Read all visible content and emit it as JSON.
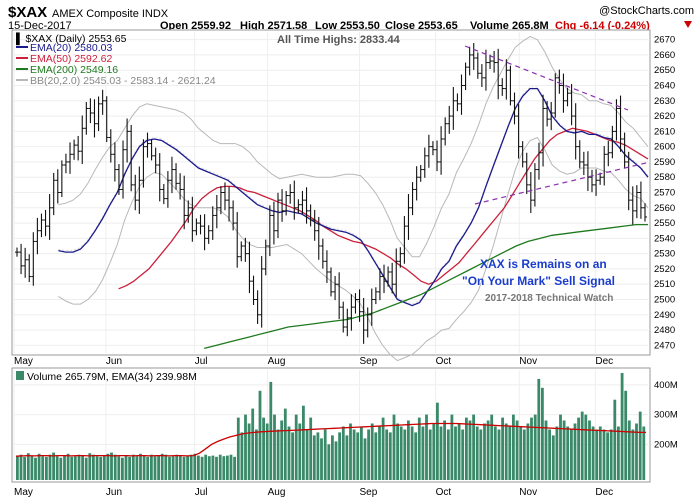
{
  "header": {
    "symbol": "$XAX",
    "name": "AMEX Composite INDX",
    "date": "15-Dec-2017",
    "open": "Open 2559.92",
    "high": "High 2571.58",
    "low": "Low 2553.50",
    "close": "Close 2553.65",
    "volume": "Volume 265.8M",
    "change": "Chg -6.14 (-0.24%)",
    "brand": "@StockCharts.com"
  },
  "legend": {
    "price": "$XAX (Daily) 2553.65",
    "ema20": "EMA(20) 2580.03",
    "ema50": "EMA(50) 2592.62",
    "ema200": "EMA(200) 2549.16",
    "bb": "BB(20,2.0) 2545.03 - 2583.14 - 2621.24"
  },
  "annotations": {
    "ath": "All Time Highs: 2833.44",
    "line1": "XAX is Remains on an",
    "line2": "\"On Your Mark\" Sell Signal",
    "line3": "2017-2018 Technical Watch"
  },
  "volume_legend": "Volume 265.79M, EMA(34) 239.98M",
  "colors": {
    "ema20": "#1a1a8c",
    "ema50": "#cc1f3a",
    "ema200": "#1f7a1f",
    "bb": "#b8b8b8",
    "volume_bar": "#3a8a6a",
    "volume_ema": "#cc0000",
    "trendline": "#8a2fae"
  },
  "chart_data": [
    {
      "type": "line",
      "title": "$XAX AMEX Composite INDX",
      "x_labels": [
        "May",
        "Jun",
        "Jul",
        "Aug",
        "Sep",
        "Oct",
        "Nov",
        "Dec"
      ],
      "y_ticks": [
        2470,
        2480,
        2490,
        2500,
        2510,
        2520,
        2530,
        2540,
        2550,
        2560,
        2570,
        2580,
        2590,
        2600,
        2610,
        2620,
        2630,
        2640,
        2650,
        2660,
        2670
      ],
      "ylim": [
        2465,
        2675
      ],
      "series": [
        {
          "name": "$XAX (Daily)",
          "values": [
            2531,
            2522,
            2526,
            2515,
            2538,
            2545,
            2552,
            2548,
            2560,
            2578,
            2570,
            2588,
            2590,
            2595,
            2601,
            2597,
            2612,
            2625,
            2622,
            2615,
            2628,
            2630,
            2606,
            2595,
            2585,
            2572,
            2598,
            2610,
            2575,
            2565,
            2578,
            2600,
            2602,
            2594,
            2588,
            2572,
            2566,
            2578,
            2585,
            2576,
            2572,
            2555,
            2560,
            2545,
            2550,
            2548,
            2540,
            2545,
            2555,
            2560,
            2570,
            2565,
            2560,
            2550,
            2528,
            2535,
            2530,
            2512,
            2500,
            2490,
            2520,
            2535,
            2555,
            2545,
            2565,
            2558,
            2568,
            2570,
            2560,
            2562,
            2565,
            2558,
            2552,
            2545,
            2535,
            2525,
            2518,
            2505,
            2510,
            2495,
            2482,
            2488,
            2495,
            2500,
            2492,
            2480,
            2490,
            2500,
            2505,
            2515,
            2512,
            2518,
            2510,
            2525,
            2530,
            2548,
            2560,
            2572,
            2580,
            2585,
            2594,
            2600,
            2598,
            2590,
            2605,
            2615,
            2620,
            2630,
            2628,
            2640,
            2652,
            2660,
            2658,
            2648,
            2645,
            2655,
            2656,
            2655,
            2640,
            2638,
            2650,
            2630,
            2620,
            2600,
            2590,
            2575,
            2565,
            2585,
            2596,
            2625,
            2618,
            2622,
            2645,
            2640,
            2630,
            2635,
            2620,
            2600,
            2590,
            2588,
            2580,
            2575,
            2578,
            2580,
            2595,
            2596,
            2610,
            2625,
            2605,
            2590,
            2565,
            2558,
            2570,
            2560,
            2554
          ]
        },
        {
          "name": "EMA(20)",
          "values": [
            2532,
            2531,
            2531,
            2533,
            2538,
            2545,
            2553,
            2562,
            2570,
            2582,
            2592,
            2600,
            2604,
            2605,
            2604,
            2601,
            2598,
            2594,
            2590,
            2586,
            2584,
            2582,
            2580,
            2578,
            2574,
            2570,
            2566,
            2562,
            2560,
            2558,
            2557,
            2558,
            2557,
            2556,
            2553,
            2550,
            2548,
            2546,
            2545,
            2544,
            2542,
            2539,
            2532,
            2524,
            2516,
            2508,
            2500,
            2498,
            2496,
            2498,
            2505,
            2512,
            2520,
            2525,
            2535,
            2542,
            2550,
            2560,
            2574,
            2587,
            2600,
            2613,
            2625,
            2633,
            2638,
            2638,
            2630,
            2620,
            2614,
            2610,
            2609,
            2610,
            2608,
            2608,
            2606,
            2605,
            2600,
            2594,
            2590,
            2586,
            2580
          ]
        },
        {
          "name": "EMA(50)",
          "values": [
            2507,
            2509,
            2512,
            2516,
            2520,
            2526,
            2532,
            2538,
            2545,
            2552,
            2560,
            2566,
            2570,
            2573,
            2574,
            2574,
            2573,
            2571,
            2570,
            2568,
            2566,
            2564,
            2562,
            2560,
            2558,
            2555,
            2552,
            2548,
            2545,
            2542,
            2540,
            2538,
            2537,
            2535,
            2533,
            2530,
            2527,
            2523,
            2520,
            2516,
            2512,
            2510,
            2512,
            2516,
            2520,
            2524,
            2530,
            2536,
            2542,
            2548,
            2554,
            2560,
            2568,
            2576,
            2584,
            2592,
            2598,
            2604,
            2608,
            2610,
            2612,
            2611,
            2610,
            2608,
            2606,
            2604,
            2603,
            2601,
            2598,
            2595,
            2592
          ]
        },
        {
          "name": "EMA(200)",
          "values": [
            2468,
            2470,
            2472,
            2474,
            2476,
            2478,
            2480,
            2482,
            2483,
            2484,
            2485,
            2486,
            2487,
            2489,
            2491,
            2494,
            2497,
            2500,
            2503,
            2507,
            2511,
            2515,
            2519,
            2523,
            2527,
            2531,
            2535,
            2538,
            2540,
            2542,
            2543,
            2544,
            2545,
            2546,
            2547,
            2548,
            2549,
            2549
          ]
        }
      ]
    },
    {
      "type": "bar",
      "title": "Volume 265.79M, EMA(34) 239.98M",
      "x_labels": [
        "May",
        "Jun",
        "Jul",
        "Aug",
        "Sep",
        "Oct",
        "Nov",
        "Dec"
      ],
      "y_ticks": [
        "200M",
        "300M",
        "400M"
      ],
      "ylim": [
        80,
        450
      ],
      "series": [
        {
          "name": "Volume",
          "values": [
            160,
            165,
            158,
            170,
            162,
            155,
            168,
            160,
            158,
            165,
            172,
            160,
            155,
            162,
            168,
            158,
            160,
            165,
            162,
            155,
            170,
            165,
            160,
            158,
            162,
            168,
            172,
            165,
            160,
            155,
            162,
            158,
            165,
            160,
            168,
            162,
            158,
            165,
            160,
            162,
            168,
            165,
            158,
            160,
            165,
            162,
            158,
            160,
            165,
            168,
            162,
            158,
            165,
            160,
            162,
            158,
            165,
            160,
            162,
            165,
            158,
            290,
            240,
            300,
            270,
            320,
            250,
            380,
            290,
            270,
            410,
            300,
            250,
            280,
            320,
            260,
            240,
            300,
            270,
            330,
            250,
            290,
            230,
            240,
            220,
            250,
            200,
            230,
            210,
            240,
            260,
            230,
            270,
            250,
            240,
            260,
            220,
            250,
            270,
            240,
            260,
            290,
            250,
            240,
            300,
            270,
            260,
            250,
            280,
            260,
            240,
            290,
            260,
            300,
            250,
            270,
            340,
            260,
            280,
            250,
            300,
            260,
            270,
            250,
            290,
            280,
            300,
            260,
            250,
            270,
            280,
            300,
            260,
            250,
            290,
            270,
            260,
            300,
            280,
            260,
            250,
            270,
            290,
            300,
            420,
            390,
            280,
            250,
            230,
            260,
            300,
            280,
            260,
            250,
            270,
            290,
            310,
            300,
            280,
            260,
            250,
            260,
            250,
            240,
            250,
            350,
            260,
            440,
            380,
            280,
            250,
            270,
            310,
            260
          ]
        },
        {
          "name": "EMA(34)",
          "values": [
            160,
            161,
            162,
            161,
            162,
            162,
            161,
            162,
            162,
            161,
            162,
            162,
            161,
            162,
            162,
            162,
            161,
            162,
            162,
            161,
            162,
            162,
            161,
            162,
            162,
            161,
            162,
            162,
            161,
            162,
            170,
            185,
            200,
            210,
            218,
            225,
            230,
            235,
            238,
            240,
            242,
            243,
            244,
            245,
            246,
            247,
            248,
            249,
            250,
            251,
            252,
            253,
            254,
            255,
            256,
            257,
            258,
            259,
            260,
            261,
            262,
            263,
            264,
            265,
            266,
            267,
            268,
            269,
            270,
            270,
            270,
            270,
            270,
            269,
            268,
            267,
            266,
            265,
            264,
            263,
            262,
            261,
            260,
            259,
            258,
            257,
            256,
            255,
            254,
            253,
            252,
            251,
            250,
            249,
            248,
            247,
            246,
            245,
            244,
            243,
            242,
            241,
            240,
            240
          ]
        }
      ]
    }
  ]
}
